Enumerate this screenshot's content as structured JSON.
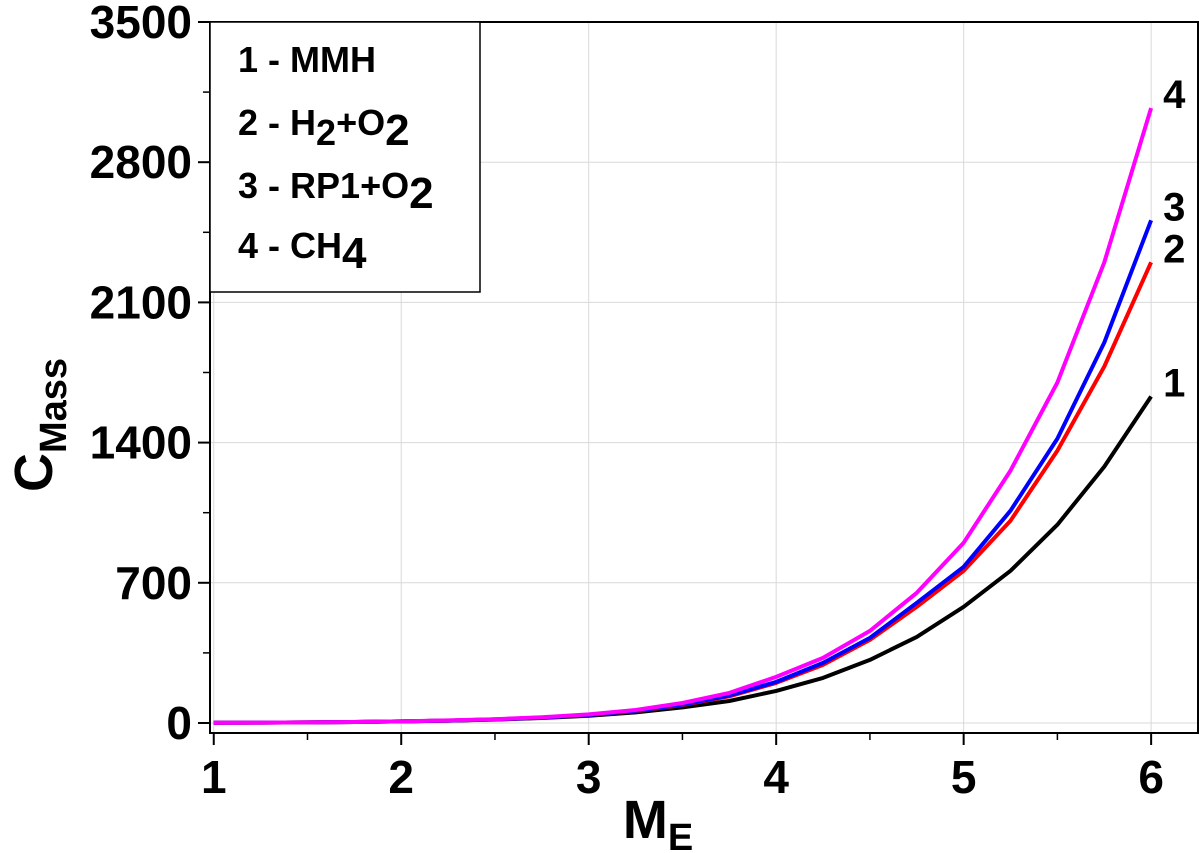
{
  "chart_data": {
    "type": "line",
    "xlabel": {
      "main": "M",
      "sub": "E"
    },
    "ylabel": {
      "main": "C",
      "sub": "Mass"
    },
    "xlim": [
      0.98,
      6.25
    ],
    "ylim": [
      -50,
      3500
    ],
    "xticks": [
      "1",
      "2",
      "3",
      "4",
      "5",
      "6"
    ],
    "yticks": [
      "0",
      "700",
      "1400",
      "2100",
      "2800",
      "3500"
    ],
    "grid": true,
    "legend_placement": "top-left",
    "x": [
      1,
      1.25,
      1.5,
      1.75,
      2,
      2.25,
      2.5,
      2.75,
      3,
      3.25,
      3.5,
      3.75,
      4,
      4.25,
      4.5,
      4.75,
      5,
      5.25,
      5.5,
      5.75,
      6
    ],
    "series": [
      {
        "name": "1",
        "color": "#000000",
        "values": [
          1,
          2,
          3,
          5,
          8,
          12,
          17,
          25,
          36,
          53,
          78,
          110,
          160,
          225,
          315,
          430,
          580,
          760,
          990,
          1280,
          1630
        ]
      },
      {
        "name": "2",
        "color": "#ff0000",
        "values": [
          1,
          2,
          3,
          5,
          8,
          12,
          18,
          27,
          40,
          60,
          90,
          133,
          200,
          290,
          415,
          580,
          760,
          1010,
          1360,
          1780,
          2300
        ]
      },
      {
        "name": "3",
        "color": "#0000ff",
        "values": [
          1,
          2,
          3,
          5,
          8,
          12,
          18,
          27,
          40,
          61,
          92,
          137,
          205,
          300,
          425,
          600,
          780,
          1060,
          1420,
          1900,
          2510
        ]
      },
      {
        "name": "4",
        "color": "#ff00ff",
        "values": [
          1,
          2,
          3,
          5,
          8,
          13,
          19,
          29,
          43,
          65,
          100,
          150,
          230,
          325,
          460,
          650,
          900,
          1260,
          1700,
          2300,
          3070
        ]
      }
    ],
    "legend": [
      {
        "number": "1",
        "text": "MMH",
        "sub1": "",
        "mid": "",
        "sub2": ""
      },
      {
        "number": "2",
        "text": "H",
        "sub1": "2",
        "mid": "+O",
        "sub2": "2"
      },
      {
        "number": "3",
        "text": "RP1+O",
        "sub1": "2",
        "mid": "",
        "sub2": ""
      },
      {
        "number": "4",
        "text": "CH",
        "sub1": "4",
        "mid": "",
        "sub2": ""
      }
    ],
    "legend_separator": " - "
  }
}
